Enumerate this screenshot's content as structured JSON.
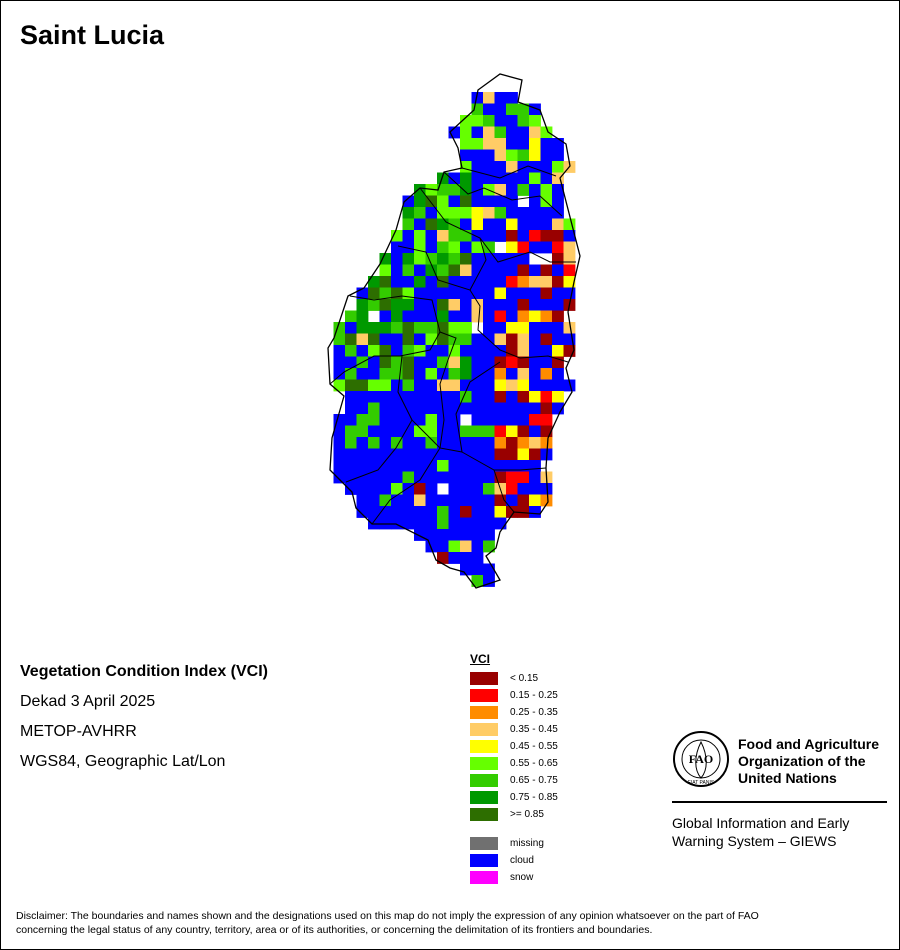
{
  "title": "Saint Lucia",
  "info": {
    "index_title": "Vegetation Condition Index (VCI)",
    "period": "Dekad 3 April 2025",
    "sensor": "METOP-AVHRR",
    "projection": "WGS84, Geographic Lat/Lon"
  },
  "legend": {
    "title": "VCI",
    "classes": [
      {
        "label": "< 0.15",
        "color": "#990000"
      },
      {
        "label": "0.15 - 0.25",
        "color": "#ff0000"
      },
      {
        "label": "0.25 - 0.35",
        "color": "#ff8c00"
      },
      {
        "label": "0.35 - 0.45",
        "color": "#ffcc66"
      },
      {
        "label": "0.45 - 0.55",
        "color": "#ffff00"
      },
      {
        "label": "0.55 - 0.65",
        "color": "#66ff00"
      },
      {
        "label": "0.65 - 0.75",
        "color": "#33cc00"
      },
      {
        "label": "0.75 - 0.85",
        "color": "#009900"
      },
      {
        "label": ">= 0.85",
        "color": "#2d6e00"
      }
    ],
    "special": [
      {
        "label": "missing",
        "color": "#707070"
      },
      {
        "label": "cloud",
        "color": "#0000ff"
      },
      {
        "label": "snow",
        "color": "#ff00ff"
      }
    ]
  },
  "organization": {
    "name_line1": "Food and Agriculture",
    "name_line2": "Organization of the",
    "name_line3": "United Nations",
    "logo_letters": "FAO",
    "logo_motto": "FIAT PANIS",
    "system_line1": "Global Information and Early",
    "system_line2": "Warning System – GIEWS"
  },
  "disclaimer_line1": "Disclaimer: The boundaries and names shown and the designations used on this map do not imply the expression of any opinion whatsoever on the part of FAO",
  "disclaimer_line2": "concerning the legal status of any country, territory, area or of its authorities, or concerning the delimitation of its frontiers and boundaries."
}
